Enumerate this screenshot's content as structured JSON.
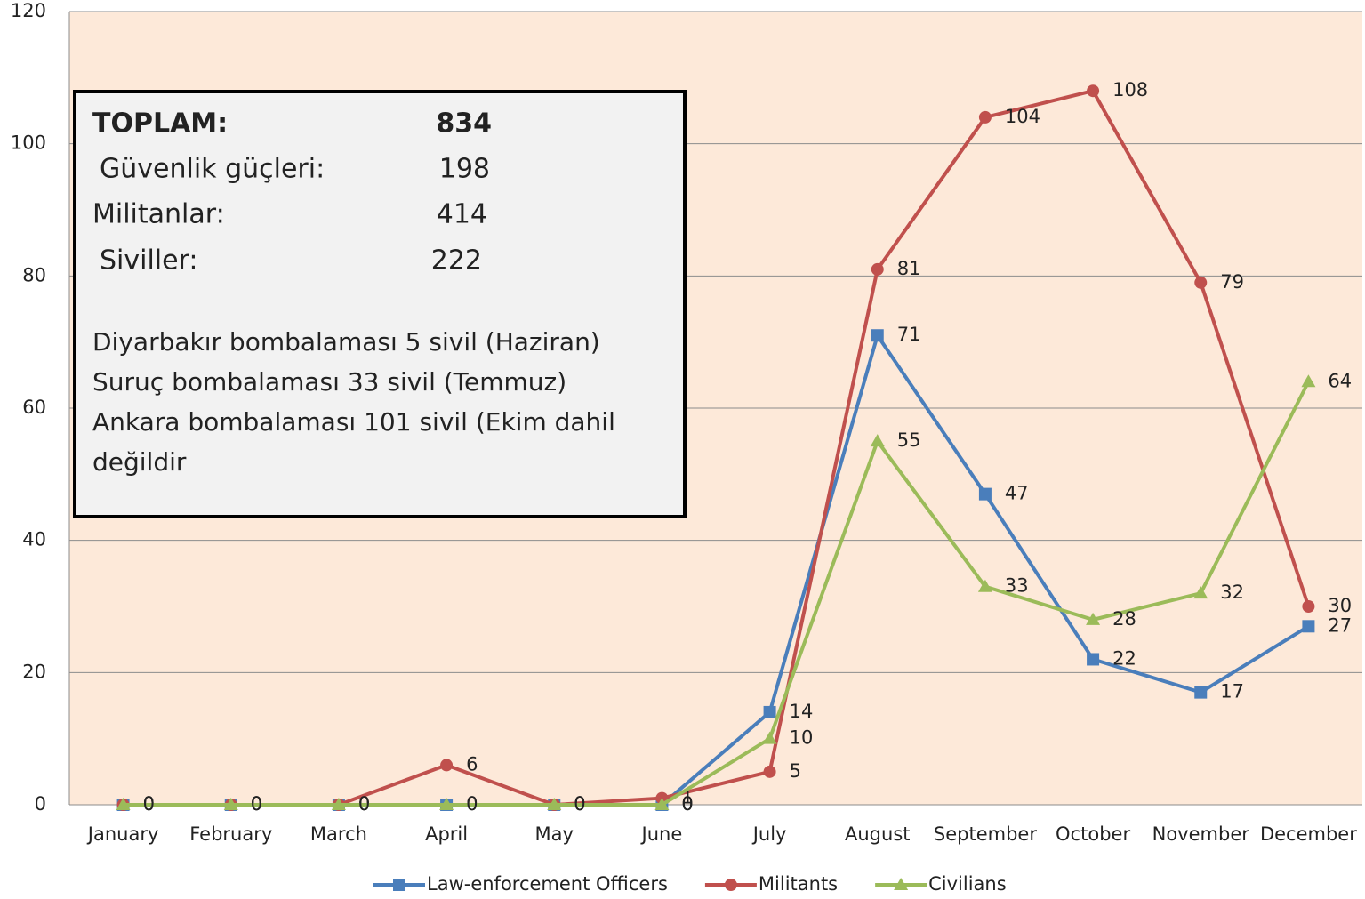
{
  "chart_data": {
    "type": "line",
    "categories": [
      "January",
      "February",
      "March",
      "April",
      "May",
      "June",
      "July",
      "August",
      "September",
      "October",
      "November",
      "December"
    ],
    "series": [
      {
        "name": "Law-enforcement Officers",
        "color": "#4a7ebb",
        "marker": "square",
        "values": [
          0,
          0,
          0,
          0,
          0,
          0,
          14,
          71,
          47,
          22,
          17,
          27
        ]
      },
      {
        "name": "Militants",
        "color": "#c0504d",
        "marker": "circle",
        "values": [
          0,
          0,
          0,
          6,
          0,
          1,
          5,
          81,
          104,
          108,
          79,
          30
        ]
      },
      {
        "name": "Civilians",
        "color": "#9bbb59",
        "marker": "triangle",
        "values": [
          0,
          0,
          0,
          0,
          0,
          0,
          10,
          55,
          33,
          28,
          32,
          64
        ]
      }
    ],
    "ylim": [
      0,
      120
    ],
    "yticks": [
      0,
      20,
      40,
      60,
      80,
      100,
      120
    ],
    "grid": true,
    "legend": "bottom",
    "annotation": {
      "rows": [
        [
          "TOPLAM:",
          "834"
        ],
        [
          "Güvenlik güçleri:",
          "198"
        ],
        [
          "Militanlar:",
          "414"
        ],
        [
          "Siviller:",
          "222"
        ]
      ],
      "notes": [
        "Diyarbakır bombalaması 5 sivil  (Haziran)",
        "Suruç bombalaması 33 sivil (Temmuz)",
        "Ankara bombalaması  101 sivil (Ekim dahil",
        "değildir"
      ]
    }
  }
}
